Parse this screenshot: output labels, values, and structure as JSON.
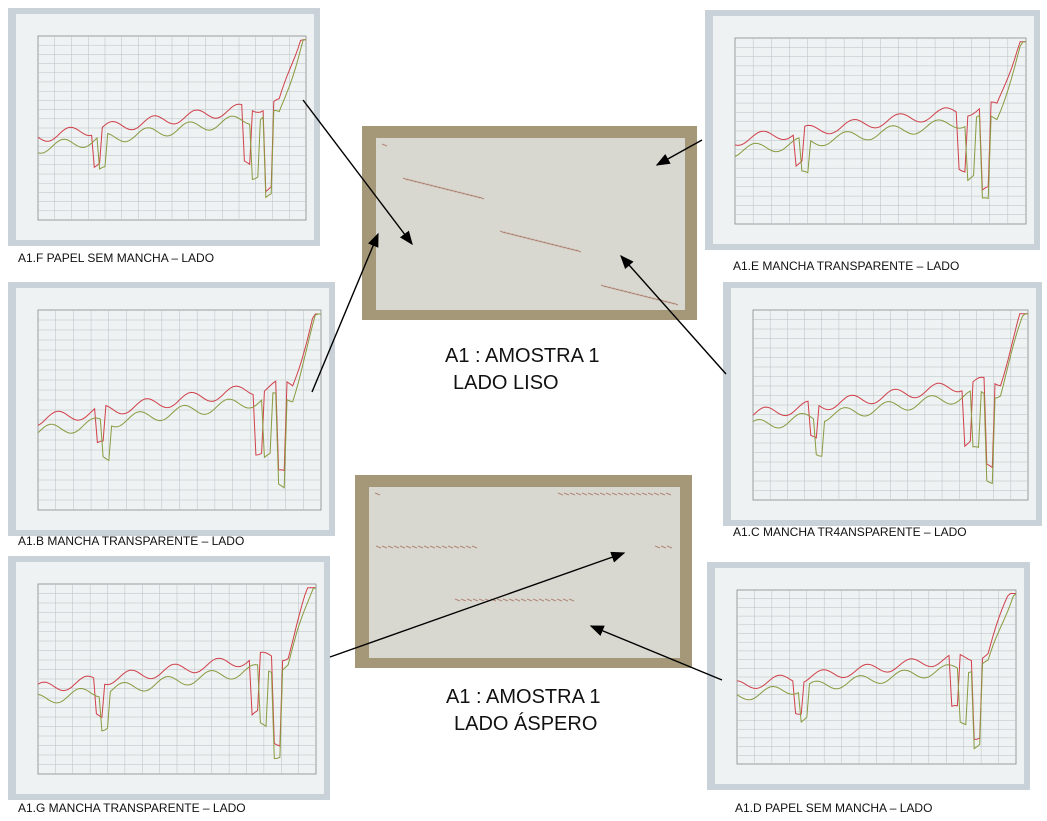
{
  "spectra": [
    {
      "caption": "A1.F PAPEL SEM MANCHA – LADO"
    },
    {
      "caption": "A1.E MANCHA TRANSPARENTE – LADO"
    },
    {
      "caption": "A1.B MANCHA TRANSPARENTE – LADO"
    },
    {
      "caption": "A1.C MANCHA TR4ANSPARENTE – LADO"
    },
    {
      "caption": "A1.G MANCHA TRANSPARENTE – LADO"
    },
    {
      "caption": "A1.D PAPEL SEM MANCHA – LADO"
    }
  ],
  "samples": [
    {
      "title": "A1 : AMOSTRA 1",
      "side": "LADO LISO"
    },
    {
      "title": "A1 : AMOSTRA 1",
      "side": "LADO ÁSPERO"
    }
  ]
}
